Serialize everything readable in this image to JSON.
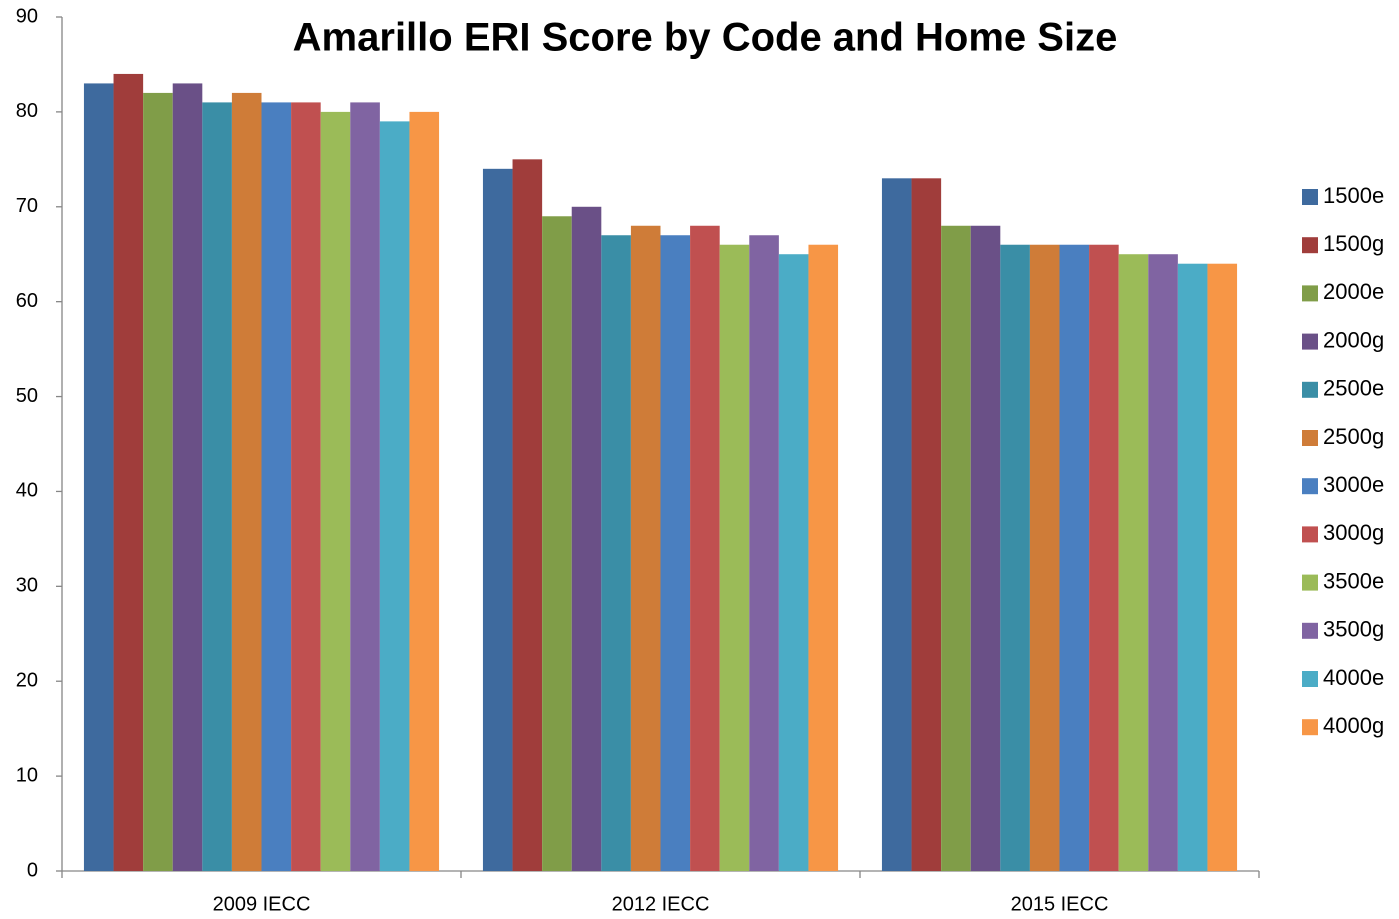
{
  "chart_data": {
    "type": "bar",
    "title": "Amarillo ERI Score by Code and Home Size",
    "categories": [
      "2009 IECC",
      "2012 IECC",
      "2015 IECC"
    ],
    "series": [
      {
        "name": "1500e",
        "color": "#3e6a9e",
        "values": [
          83,
          74,
          73
        ]
      },
      {
        "name": "1500g",
        "color": "#a03d3b",
        "values": [
          84,
          75,
          73
        ]
      },
      {
        "name": "2000e",
        "color": "#809d48",
        "values": [
          82,
          69,
          68
        ]
      },
      {
        "name": "2000g",
        "color": "#6a5087",
        "values": [
          83,
          70,
          68
        ]
      },
      {
        "name": "2500e",
        "color": "#3a8ea6",
        "values": [
          81,
          67,
          66
        ]
      },
      {
        "name": "2500g",
        "color": "#cf7c38",
        "values": [
          82,
          68,
          66
        ]
      },
      {
        "name": "3000e",
        "color": "#4a7fc0",
        "values": [
          81,
          67,
          66
        ]
      },
      {
        "name": "3000g",
        "color": "#c05050",
        "values": [
          81,
          68,
          66
        ]
      },
      {
        "name": "3500e",
        "color": "#9bbb58",
        "values": [
          80,
          66,
          65
        ]
      },
      {
        "name": "3500g",
        "color": "#8064a2",
        "values": [
          81,
          67,
          65
        ]
      },
      {
        "name": "4000e",
        "color": "#4bacc6",
        "values": [
          79,
          65,
          64
        ]
      },
      {
        "name": "4000g",
        "color": "#f79646",
        "values": [
          80,
          66,
          64
        ]
      }
    ],
    "ylim": [
      0,
      90
    ],
    "yticks": [
      0,
      10,
      20,
      30,
      40,
      50,
      60,
      70,
      80,
      90
    ],
    "grid": false,
    "legend": "right"
  }
}
